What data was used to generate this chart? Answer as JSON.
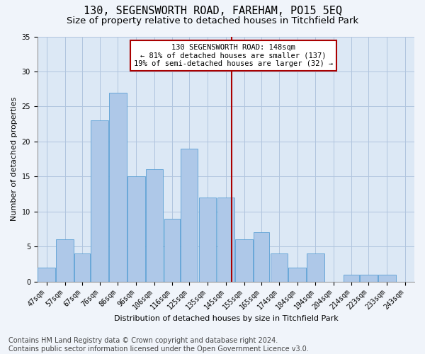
{
  "title": "130, SEGENSWORTH ROAD, FAREHAM, PO15 5EQ",
  "subtitle": "Size of property relative to detached houses in Titchfield Park",
  "xlabel": "Distribution of detached houses by size in Titchfield Park",
  "ylabel": "Number of detached properties",
  "footer_line1": "Contains HM Land Registry data © Crown copyright and database right 2024.",
  "footer_line2": "Contains public sector information licensed under the Open Government Licence v3.0.",
  "bin_labels": [
    "47sqm",
    "57sqm",
    "67sqm",
    "76sqm",
    "86sqm",
    "96sqm",
    "106sqm",
    "116sqm",
    "125sqm",
    "135sqm",
    "145sqm",
    "155sqm",
    "165sqm",
    "174sqm",
    "184sqm",
    "194sqm",
    "204sqm",
    "214sqm",
    "223sqm",
    "233sqm",
    "243sqm"
  ],
  "bin_edges": [
    42,
    52,
    62,
    71,
    81,
    91,
    101,
    111,
    120,
    130,
    140,
    150,
    160,
    169,
    179,
    189,
    199,
    209,
    218,
    228,
    238,
    248
  ],
  "counts": [
    2,
    6,
    4,
    23,
    27,
    15,
    16,
    9,
    19,
    12,
    12,
    6,
    7,
    4,
    2,
    4,
    0,
    1,
    1,
    1,
    0
  ],
  "bar_color": "#aec8e8",
  "bar_edge_color": "#5a9fd4",
  "vline_x": 148,
  "vline_color": "#aa0000",
  "annotation_text": "130 SEGENSWORTH ROAD: 148sqm\n← 81% of detached houses are smaller (137)\n19% of semi-detached houses are larger (32) →",
  "annotation_box_color": "#ffffff",
  "annotation_box_edge": "#aa0000",
  "ylim": [
    0,
    35
  ],
  "yticks": [
    0,
    5,
    10,
    15,
    20,
    25,
    30,
    35
  ],
  "background_color": "#f0f4fa",
  "plot_bg_color": "#dce8f5",
  "grid_color": "#b0c4de",
  "title_fontsize": 11,
  "subtitle_fontsize": 9.5,
  "axis_label_fontsize": 8,
  "tick_fontsize": 7,
  "annotation_fontsize": 7.5,
  "footer_fontsize": 7
}
